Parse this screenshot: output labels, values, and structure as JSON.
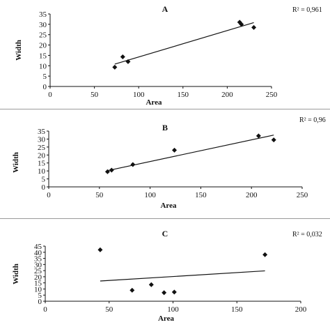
{
  "chart_data": [
    {
      "type": "scatter",
      "title": "A",
      "r2_text": "R² = 0,961",
      "xlabel": "Area",
      "ylabel": "Width",
      "xlim": [
        0,
        250
      ],
      "ylim": [
        0,
        35
      ],
      "xticks": [
        0,
        50,
        100,
        150,
        200,
        250
      ],
      "yticks": [
        0,
        5,
        10,
        15,
        20,
        25,
        30,
        35
      ],
      "points": [
        [
          73,
          9.3
        ],
        [
          82,
          14.3
        ],
        [
          88,
          12
        ],
        [
          214,
          31
        ],
        [
          216,
          30
        ],
        [
          230,
          28.5
        ]
      ],
      "trendline": [
        [
          73,
          10.8
        ],
        [
          230,
          30.8
        ]
      ]
    },
    {
      "type": "scatter",
      "title": "B",
      "r2_text": "R² = 0,96",
      "xlabel": "Area",
      "ylabel": "Width",
      "xlim": [
        0,
        250
      ],
      "ylim": [
        0,
        35
      ],
      "xticks": [
        0,
        50,
        100,
        150,
        200,
        250
      ],
      "yticks": [
        0,
        5,
        10,
        15,
        20,
        25,
        30,
        35
      ],
      "points": [
        [
          58,
          9.5
        ],
        [
          62,
          10.5
        ],
        [
          83,
          14
        ],
        [
          124,
          23
        ],
        [
          207,
          32
        ],
        [
          222,
          29.5
        ]
      ],
      "trendline": [
        [
          58,
          10.2
        ],
        [
          222,
          32.5
        ]
      ]
    },
    {
      "type": "scatter",
      "title": "C",
      "r2_text": "R² = 0,032",
      "xlabel": "Area",
      "ylabel": "Width",
      "xlim": [
        0,
        200
      ],
      "ylim": [
        0,
        45
      ],
      "xticks": [
        0,
        50,
        100,
        150,
        200
      ],
      "yticks": [
        0,
        5,
        10,
        15,
        20,
        25,
        30,
        35,
        40,
        45
      ],
      "points": [
        [
          43,
          42
        ],
        [
          68,
          9
        ],
        [
          83,
          13.5
        ],
        [
          93,
          7
        ],
        [
          101,
          7.5
        ],
        [
          172,
          38
        ]
      ],
      "trendline": [
        [
          43,
          16.5
        ],
        [
          172,
          24.8
        ]
      ]
    }
  ]
}
